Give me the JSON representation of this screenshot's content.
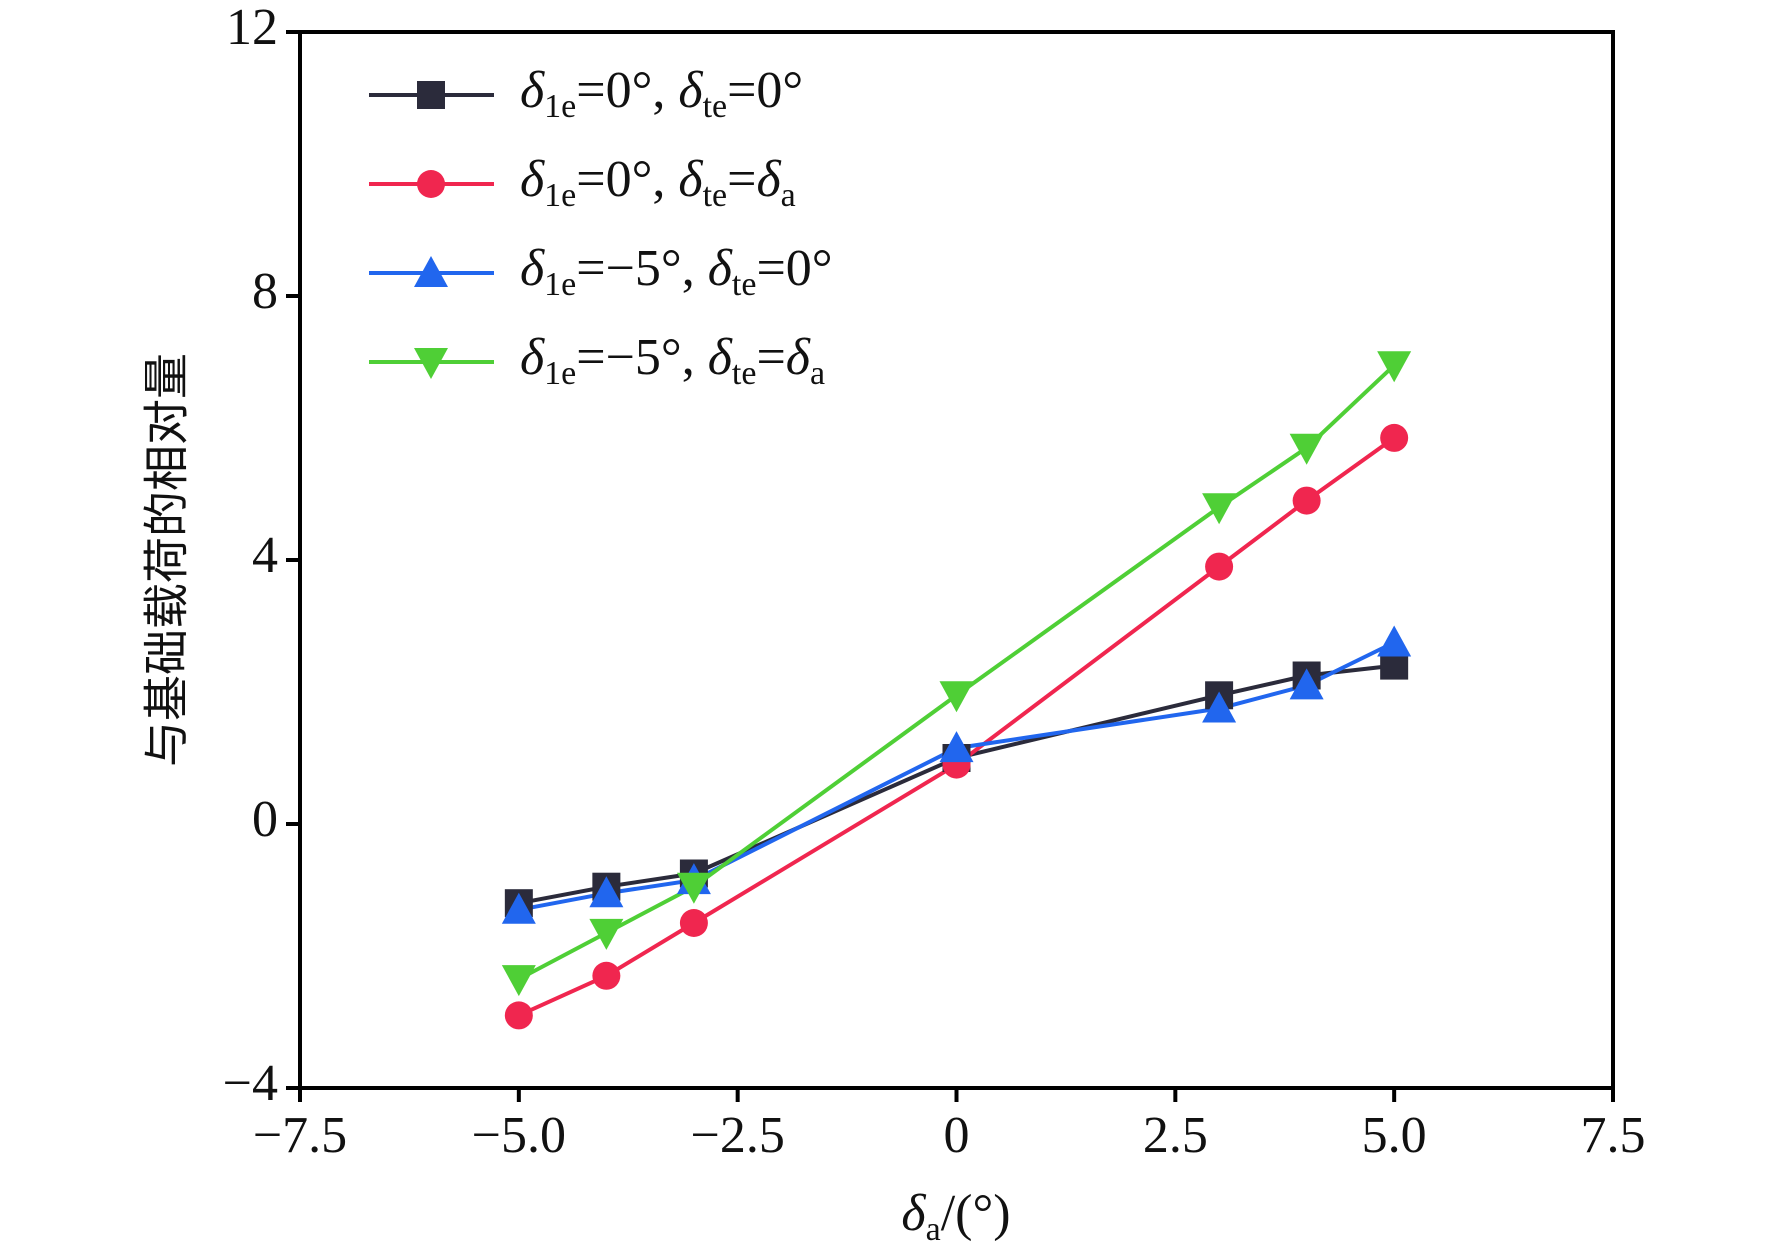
{
  "chart_data": {
    "type": "line",
    "x_label": "δa/(°)",
    "y_label": "与基础载荷的相对量",
    "xlim": [
      -7.5,
      7.5
    ],
    "xticks": [
      {
        "value": -7.5,
        "label": "−7.5"
      },
      {
        "value": -5,
        "label": "−5.0"
      },
      {
        "value": -2.5,
        "label": "−2.5"
      },
      0,
      2.5,
      {
        "value": 5,
        "label": "5.0"
      },
      7.5
    ],
    "ylim": [
      -4,
      12
    ],
    "yticks": [
      {
        "value": -4,
        "label": "−4"
      },
      0,
      4,
      8,
      12
    ],
    "x": [
      -5,
      -4,
      -3,
      0,
      3,
      4,
      5
    ],
    "series": [
      {
        "name": "δ1e=0°, δte=0°",
        "color": "#2b2b3b",
        "marker": "square",
        "values": [
          -1.2,
          -0.95,
          -0.75,
          1.0,
          1.95,
          2.25,
          2.4
        ]
      },
      {
        "name": "δ1e=0°, δte=δa",
        "color": "#f0264f",
        "marker": "circle",
        "values": [
          -2.9,
          -2.3,
          -1.5,
          0.9,
          3.9,
          4.9,
          5.85
        ]
      },
      {
        "name": "δ1e=−5°, δte=0°",
        "color": "#2166ee",
        "marker": "triangle-up",
        "values": [
          -1.3,
          -1.05,
          -0.85,
          1.15,
          1.75,
          2.1,
          2.75
        ]
      },
      {
        "name": "δ1e=−5°, δte=δa",
        "color": "#4fcf36",
        "marker": "triangle-down",
        "values": [
          -2.35,
          -1.65,
          -0.95,
          1.95,
          4.8,
          5.7,
          6.95
        ]
      }
    ],
    "legend": "upper left"
  }
}
